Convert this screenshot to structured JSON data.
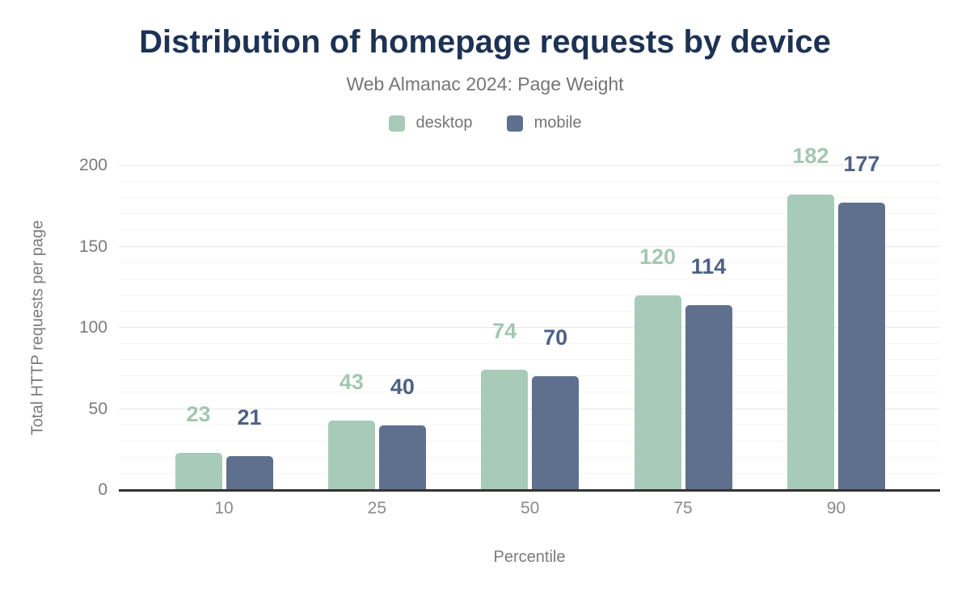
{
  "chart": {
    "title": "Distribution of homepage requests by device",
    "subtitle": "Web Almanac 2024: Page Weight"
  },
  "chart_data": {
    "type": "bar",
    "categories": [
      "10",
      "25",
      "50",
      "75",
      "90"
    ],
    "series": [
      {
        "name": "desktop",
        "values": [
          23,
          43,
          74,
          120,
          182
        ],
        "color": "#a8cab8",
        "label_color": "#a3c7b2"
      },
      {
        "name": "mobile",
        "values": [
          21,
          40,
          70,
          114,
          177
        ],
        "color": "#5f708e",
        "label_color": "#4e6185"
      }
    ],
    "title": "Distribution of homepage requests by device",
    "subtitle": "Web Almanac 2024: Page Weight",
    "xlabel": "Percentile",
    "ylabel": "Total HTTP requests per page",
    "ylim": [
      0,
      200
    ],
    "yticks": [
      0,
      50,
      100,
      150,
      200
    ],
    "minor_grid_step": 10,
    "grid": true,
    "legend_position": "top",
    "value_labels": true,
    "colors": {
      "title": "#1d3254",
      "subtitle_text": "#757575",
      "axis_text": "#7b7b7b",
      "major_gridline": "#e8e8e8",
      "minor_gridline": "#f5f5f5",
      "baseline": "#333333"
    }
  }
}
